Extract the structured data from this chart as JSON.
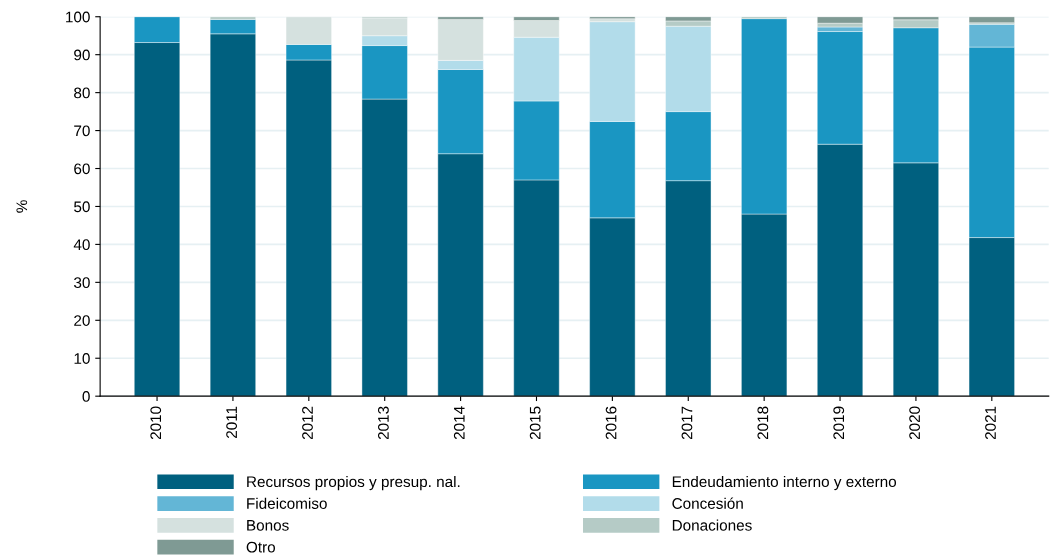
{
  "chart_data": {
    "type": "bar",
    "stacked": true,
    "ylabel": "%",
    "categories": [
      "2010",
      "2011",
      "2012",
      "2013",
      "2014",
      "2015",
      "2016",
      "2017",
      "2018",
      "2019",
      "2020",
      "2021"
    ],
    "ylim": [
      0,
      100
    ],
    "yticks": [
      0,
      10,
      20,
      30,
      40,
      50,
      60,
      70,
      80,
      90,
      100
    ],
    "grid": "y",
    "legend": "bottom",
    "series": [
      {
        "name": "Recursos propios y presup. nal.",
        "color": "#00607f",
        "values": [
          93.2,
          95.5,
          88.6,
          78.3,
          63.9,
          57,
          47,
          56.8,
          48,
          66.4,
          61.5,
          41.8
        ]
      },
      {
        "name": "Endeudamiento interno y externo",
        "color": "#1a96c2",
        "values": [
          6.8,
          3.8,
          4.1,
          14.1,
          22.2,
          20.8,
          25.4,
          18.2,
          51.5,
          29.7,
          35.6,
          50.2
        ]
      },
      {
        "name": "Fideicomiso",
        "color": "#63b6d6",
        "values": [
          null,
          null,
          null,
          null,
          null,
          null,
          null,
          null,
          null,
          1.2,
          null,
          6
        ]
      },
      {
        "name": "Concesión",
        "color": "#b2dcea",
        "values": [
          null,
          null,
          null,
          2.6,
          2.4,
          16.8,
          26.3,
          22.5,
          null,
          null,
          null,
          null
        ]
      },
      {
        "name": "Bonos",
        "color": "#d5e1df",
        "values": [
          null,
          null,
          7.3,
          4.7,
          10.8,
          4.4,
          0.8,
          null,
          null,
          null,
          null,
          null
        ]
      },
      {
        "name": "Donaciones",
        "color": "#b5cbc6",
        "values": [
          null,
          0.7,
          null,
          0.3,
          null,
          null,
          null,
          1.4,
          0.5,
          1,
          2.1,
          0.4
        ]
      },
      {
        "name": "Otro",
        "color": "#7f9a94",
        "values": [
          null,
          null,
          null,
          null,
          0.7,
          1,
          0.5,
          1.1,
          null,
          1.7,
          0.8,
          1.6
        ]
      }
    ]
  }
}
